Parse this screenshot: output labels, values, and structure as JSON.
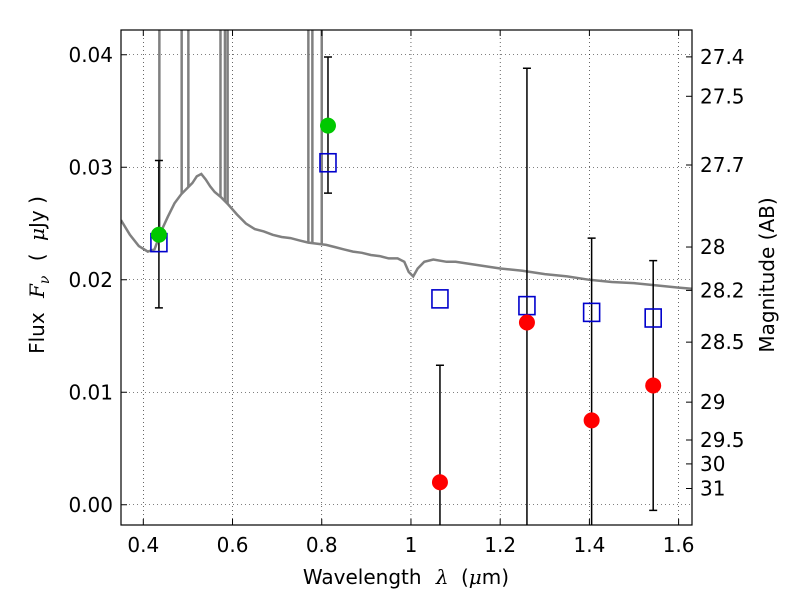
{
  "chart_data": {
    "type": "scatter",
    "title": "",
    "xlabel": "Wavelength",
    "xlabel_math": "λ",
    "xlabel_unit_open": "(",
    "xlabel_unit_math": "μ",
    "xlabel_unit_rest": "m)",
    "ylabel": "Flux",
    "ylabel_math": "F",
    "ylabel_math_sub": "ν",
    "ylabel_unit_open": "(",
    "ylabel_unit_math": "μ",
    "ylabel_unit_rest": "Jy )",
    "y2label": "Magnitude (AB)",
    "xlim": [
      0.35,
      1.63
    ],
    "ylim": [
      -0.0018,
      0.0422
    ],
    "grid": true,
    "x_ticks": [
      {
        "value": 0.4,
        "label": "0.4"
      },
      {
        "value": 0.6,
        "label": "0.6"
      },
      {
        "value": 0.8,
        "label": "0.8"
      },
      {
        "value": 1.0,
        "label": "1"
      },
      {
        "value": 1.2,
        "label": "1.2"
      },
      {
        "value": 1.4,
        "label": "1.4"
      },
      {
        "value": 1.6,
        "label": "1.6"
      }
    ],
    "y_ticks": [
      {
        "value": 0.0,
        "label": "0.00"
      },
      {
        "value": 0.01,
        "label": "0.01"
      },
      {
        "value": 0.02,
        "label": "0.02"
      },
      {
        "value": 0.03,
        "label": "0.03"
      },
      {
        "value": 0.04,
        "label": "0.04"
      }
    ],
    "y2_ticks": [
      {
        "value": 27.4,
        "label": "27.4"
      },
      {
        "value": 27.5,
        "label": "27.5"
      },
      {
        "value": 27.7,
        "label": "27.7"
      },
      {
        "value": 28.0,
        "label": "28"
      },
      {
        "value": 28.2,
        "label": "28.2"
      },
      {
        "value": 28.5,
        "label": "28.5"
      },
      {
        "value": 29.0,
        "label": "29"
      },
      {
        "value": 29.5,
        "label": "29.5"
      },
      {
        "value": 30.0,
        "label": "30"
      },
      {
        "value": 31.0,
        "label": "31"
      }
    ],
    "model_spectrum": {
      "color": "#808080",
      "points": [
        [
          0.35,
          0.0253
        ],
        [
          0.37,
          0.024
        ],
        [
          0.39,
          0.023
        ],
        [
          0.41,
          0.0225
        ],
        [
          0.425,
          0.0227
        ],
        [
          0.44,
          0.0243
        ],
        [
          0.455,
          0.0256
        ],
        [
          0.47,
          0.0268
        ],
        [
          0.485,
          0.0276
        ],
        [
          0.5,
          0.0282
        ],
        [
          0.51,
          0.0286
        ],
        [
          0.52,
          0.0292
        ],
        [
          0.53,
          0.0294
        ],
        [
          0.54,
          0.0289
        ],
        [
          0.55,
          0.0283
        ],
        [
          0.56,
          0.0278
        ],
        [
          0.575,
          0.0273
        ],
        [
          0.59,
          0.0267
        ],
        [
          0.61,
          0.0258
        ],
        [
          0.63,
          0.025
        ],
        [
          0.65,
          0.0245
        ],
        [
          0.67,
          0.0243
        ],
        [
          0.69,
          0.024
        ],
        [
          0.71,
          0.0238
        ],
        [
          0.73,
          0.0237
        ],
        [
          0.75,
          0.0235
        ],
        [
          0.77,
          0.0233
        ],
        [
          0.79,
          0.0232
        ],
        [
          0.81,
          0.0231
        ],
        [
          0.83,
          0.0229
        ],
        [
          0.85,
          0.0227
        ],
        [
          0.87,
          0.0225
        ],
        [
          0.89,
          0.0224
        ],
        [
          0.91,
          0.0222
        ],
        [
          0.93,
          0.0221
        ],
        [
          0.95,
          0.0219
        ],
        [
          0.97,
          0.0219
        ],
        [
          0.985,
          0.0216
        ],
        [
          0.995,
          0.0207
        ],
        [
          1.005,
          0.0203
        ],
        [
          1.015,
          0.021
        ],
        [
          1.03,
          0.0216
        ],
        [
          1.05,
          0.0218
        ],
        [
          1.08,
          0.0216
        ],
        [
          1.1,
          0.0216
        ],
        [
          1.15,
          0.0213
        ],
        [
          1.2,
          0.021
        ],
        [
          1.25,
          0.0208
        ],
        [
          1.3,
          0.0205
        ],
        [
          1.35,
          0.0203
        ],
        [
          1.4,
          0.02
        ],
        [
          1.45,
          0.0198
        ],
        [
          1.5,
          0.0197
        ],
        [
          1.55,
          0.0195
        ],
        [
          1.6,
          0.0193
        ],
        [
          1.63,
          0.0192
        ]
      ],
      "spikes": [
        [
          0.436,
          0.0436
        ],
        [
          0.486,
          0.0486
        ],
        [
          0.501,
          0.0501
        ],
        [
          0.573,
          0.0573
        ],
        [
          0.583,
          0.0583
        ],
        [
          0.589,
          0.0589
        ],
        [
          0.77,
          0.077
        ],
        [
          0.779,
          0.0779
        ],
        [
          0.8,
          0.08
        ]
      ]
    },
    "series": [
      {
        "marker": "open-square",
        "color": "#0000cc",
        "points": [
          {
            "x": 0.435,
            "y": 0.0233
          },
          {
            "x": 0.814,
            "y": 0.0304
          },
          {
            "x": 1.065,
            "y": 0.0183
          },
          {
            "x": 1.26,
            "y": 0.0177
          },
          {
            "x": 1.405,
            "y": 0.0171
          },
          {
            "x": 1.543,
            "y": 0.0166
          }
        ]
      },
      {
        "marker": "filled-circle",
        "color": "#00c800",
        "points": [
          {
            "x": 0.435,
            "y": 0.024,
            "ylow": 0.0175,
            "yhigh": 0.0306
          },
          {
            "x": 0.814,
            "y": 0.0337,
            "ylow": 0.0277,
            "yhigh": 0.0398
          }
        ]
      },
      {
        "marker": "filled-circle",
        "color": "#ff0000",
        "points": [
          {
            "x": 1.065,
            "y": 0.002,
            "ylow": -0.0018,
            "yhigh": 0.0124
          },
          {
            "x": 1.26,
            "y": 0.0162,
            "ylow": -0.0018,
            "yhigh": 0.0388
          },
          {
            "x": 1.405,
            "y": 0.0075,
            "ylow": -0.0018,
            "yhigh": 0.0237
          },
          {
            "x": 1.543,
            "y": 0.0106,
            "ylow": -0.0005,
            "yhigh": 0.0217
          }
        ]
      }
    ]
  }
}
